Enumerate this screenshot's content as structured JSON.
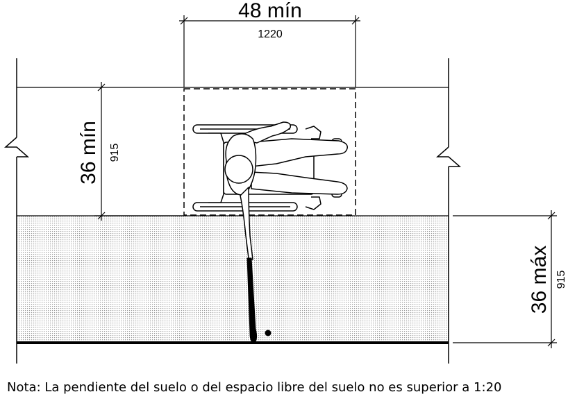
{
  "dimensions": {
    "width_primary": "48 mín",
    "width_metric": "1220",
    "depth_primary": "36 mín",
    "depth_metric": "915",
    "reach_primary": "36 máx",
    "reach_metric": "915"
  },
  "note": "Nota: La pendiente del suelo o del espacio libre del suelo no es superior a 1:20",
  "colors": {
    "line": "#000000",
    "fill": "#ffffff"
  }
}
